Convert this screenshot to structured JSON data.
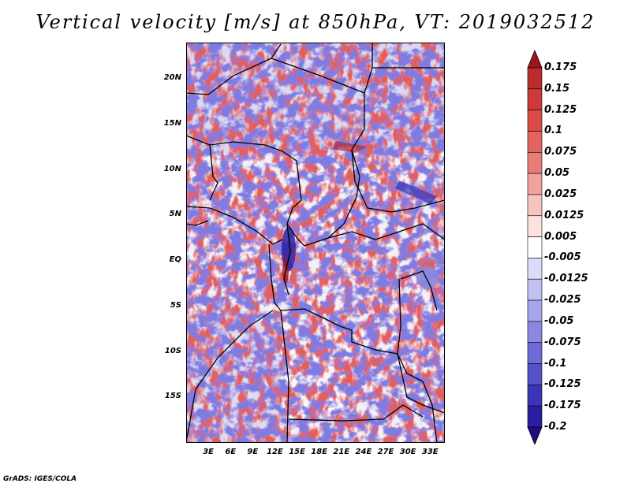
{
  "title": "Vertical velocity [m/s] at 850hPa, VT: 2019032512",
  "credit": "GrADS: IGES/COLA",
  "lat_labels": [
    "20N",
    "15N",
    "10N",
    "5N",
    "EQ",
    "5S",
    "10S",
    "15S"
  ],
  "lon_labels": [
    "3E",
    "6E",
    "9E",
    "12E",
    "15E",
    "18E",
    "21E",
    "24E",
    "27E",
    "30E",
    "33E"
  ],
  "colorbar": {
    "labels": [
      "0.175",
      "0.15",
      "0.125",
      "0.1",
      "0.075",
      "0.05",
      "0.025",
      "0.0125",
      "0.005",
      "-0.005",
      "-0.0125",
      "-0.025",
      "-0.05",
      "-0.075",
      "-0.1",
      "-0.125",
      "-0.175",
      "-0.2"
    ],
    "colors": [
      "#a0141e",
      "#bb2a2f",
      "#cc3a3a",
      "#d94c48",
      "#e26460",
      "#ea7d78",
      "#f2a19b",
      "#f8c4bf",
      "#fce2df",
      "#ffffff",
      "#dcdcf8",
      "#c2c2f2",
      "#a6a6ea",
      "#8a88e0",
      "#6e6ad6",
      "#5450c8",
      "#3a34b6",
      "#2a1ea0",
      "#1c0c82"
    ]
  },
  "map": {
    "lon_range": [
      0,
      35
    ],
    "lat_range": [
      -20,
      24
    ],
    "field": "vertical velocity (m/s) at 850hPa"
  }
}
